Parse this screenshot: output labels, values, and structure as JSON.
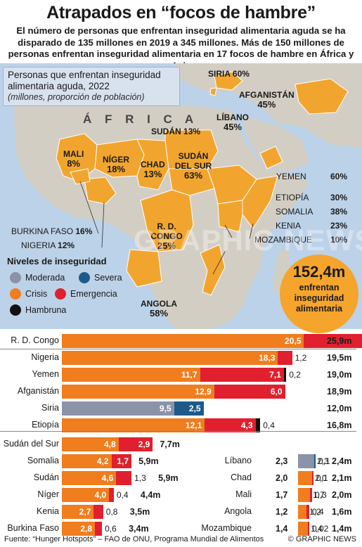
{
  "title": "Atrapados en “focos de hambre”",
  "subtitle": "El número de personas que enfrentan inseguridad alimentaria aguda se ha disparado de 135 millones en 2019 a 345 millones. Más de 150 millones de personas enfrentan inseguridad alimentaria en 17 focos de hambre en África y Asia",
  "infobox": {
    "line1": "Personas que enfrentan inseguridad alimentaria aguda, 2022",
    "line2": "(millones, proporción de población)"
  },
  "map": {
    "continent_label": "Á F R I C A",
    "labels": [
      {
        "name": "SIRIA",
        "pct": "60%"
      },
      {
        "name": "AFGANISTÁN",
        "pct": "45%"
      },
      {
        "name": "LÍBANO",
        "pct": "45%"
      },
      {
        "name": "SUDÁN",
        "pct": "13%"
      },
      {
        "name": "MALI",
        "pct": "8%"
      },
      {
        "name": "NÍGER",
        "pct": "18%"
      },
      {
        "name": "CHAD",
        "pct": "13%"
      },
      {
        "name": "SUDÁN DEL SUR",
        "pct": "63%"
      },
      {
        "name": "R. D. CONGO",
        "pct": "25%"
      },
      {
        "name": "ANGOLA",
        "pct": "58%"
      }
    ],
    "side_labels": [
      {
        "name": "YEMEN",
        "pct": "60%"
      },
      {
        "name": "ETIOPÍA",
        "pct": "30%"
      },
      {
        "name": "SOMALIA",
        "pct": "38%"
      },
      {
        "name": "KENIA",
        "pct": "23%"
      },
      {
        "name": "MOZAMBIQUE",
        "pct": "10%"
      },
      {
        "name": "BURKINA FASO",
        "pct": "16%"
      },
      {
        "name": "NIGERIA",
        "pct": "12%"
      }
    ]
  },
  "legend": {
    "title": "Niveles de inseguridad",
    "items": [
      {
        "label": "Moderada",
        "color": "#8a93a8"
      },
      {
        "label": "Severa",
        "color": "#1c5a8a"
      },
      {
        "label": "Crisis",
        "color": "#f07d1e"
      },
      {
        "label": "Emergencia",
        "color": "#e0202e"
      },
      {
        "label": "Hambruna",
        "color": "#111111"
      }
    ]
  },
  "total": {
    "value": "152,4m",
    "text": "enfrentan inseguridad alimentaria"
  },
  "watermark": "GRAPHIC NEWS",
  "chart_data": {
    "type": "bar",
    "stacked": true,
    "unit": "millones",
    "series": [
      {
        "name": "Moderada",
        "color": "#8a93a8"
      },
      {
        "name": "Severa",
        "color": "#1c5a8a"
      },
      {
        "name": "Crisis",
        "color": "#f07d1e"
      },
      {
        "name": "Emergencia",
        "color": "#e0202e"
      },
      {
        "name": "Hambruna",
        "color": "#111111"
      }
    ],
    "rows": [
      {
        "label": "R. D. Congo",
        "total": "25,9m",
        "segments": [
          {
            "series": "Crisis",
            "value": 20.5,
            "label": "20,5"
          },
          {
            "series": "Emergencia",
            "value": 5.4,
            "label": "5,4"
          }
        ]
      },
      {
        "label": "Nigeria",
        "total": "19,5m",
        "segments": [
          {
            "series": "Crisis",
            "value": 18.3,
            "label": "18,3"
          },
          {
            "series": "Emergencia",
            "value": 1.2,
            "label": "1,2"
          }
        ]
      },
      {
        "label": "Yemen",
        "total": "19,0m",
        "segments": [
          {
            "series": "Crisis",
            "value": 11.7,
            "label": "11,7"
          },
          {
            "series": "Emergencia",
            "value": 7.1,
            "label": "7,1"
          },
          {
            "series": "Hambruna",
            "value": 0.2,
            "label": "0,2"
          }
        ]
      },
      {
        "label": "Afganistán",
        "total": "18,9m",
        "segments": [
          {
            "series": "Crisis",
            "value": 12.9,
            "label": "12,9"
          },
          {
            "series": "Emergencia",
            "value": 6.0,
            "label": "6,0"
          }
        ]
      },
      {
        "label": "Siria",
        "total": "12,0m",
        "segments": [
          {
            "series": "Moderada",
            "value": 9.5,
            "label": "9,5"
          },
          {
            "series": "Severa",
            "value": 2.5,
            "label": "2,5"
          }
        ]
      },
      {
        "label": "Etiopía",
        "total": "16,8m",
        "segments": [
          {
            "series": "Crisis",
            "value": 12.1,
            "label": "12,1"
          },
          {
            "series": "Emergencia",
            "value": 4.3,
            "label": "4,3"
          },
          {
            "series": "Hambruna",
            "value": 0.4,
            "label": "0,4"
          }
        ]
      },
      {
        "label": "Sudán del Sur",
        "total": "7,7m",
        "segments": [
          {
            "series": "Crisis",
            "value": 4.8,
            "label": "4,8"
          },
          {
            "series": "Emergencia",
            "value": 2.9,
            "label": "2,9"
          }
        ]
      },
      {
        "label": "Somalia",
        "total": "5,9m",
        "segments": [
          {
            "series": "Crisis",
            "value": 4.2,
            "label": "4,2"
          },
          {
            "series": "Emergencia",
            "value": 1.7,
            "label": "1,7"
          }
        ]
      },
      {
        "label": "Sudán",
        "total": "5,9m",
        "segments": [
          {
            "series": "Crisis",
            "value": 4.6,
            "label": "4,6"
          },
          {
            "series": "Emergencia",
            "value": 1.3,
            "label": "1,3"
          }
        ]
      },
      {
        "label": "Níger",
        "total": "4,4m",
        "segments": [
          {
            "series": "Crisis",
            "value": 4.0,
            "label": "4,0"
          },
          {
            "series": "Emergencia",
            "value": 0.4,
            "label": "0,4"
          }
        ]
      },
      {
        "label": "Kenia",
        "total": "3,5m",
        "segments": [
          {
            "series": "Crisis",
            "value": 2.7,
            "label": "2,7"
          },
          {
            "series": "Emergencia",
            "value": 0.8,
            "label": "0,8"
          }
        ]
      },
      {
        "label": "Burkina Faso",
        "total": "3,4m",
        "segments": [
          {
            "series": "Crisis",
            "value": 2.8,
            "label": "2,8"
          },
          {
            "series": "Emergencia",
            "value": 0.6,
            "label": "0,6"
          }
        ]
      },
      {
        "label": "Líbano",
        "total": "2,4m",
        "segments": [
          {
            "series": "Moderada",
            "value": 2.3,
            "label": "2,3"
          },
          {
            "series": "Severa",
            "value": 0.1,
            "label": "0,1"
          }
        ]
      },
      {
        "label": "Chad",
        "total": "2,1m",
        "segments": [
          {
            "series": "Crisis",
            "value": 2.0,
            "label": "2,0"
          },
          {
            "series": "Emergencia",
            "value": 0.1,
            "label": "0,1"
          }
        ]
      },
      {
        "label": "Mali",
        "total": "2,0m",
        "segments": [
          {
            "series": "Crisis",
            "value": 1.7,
            "label": "1,7"
          },
          {
            "series": "Emergencia",
            "value": 0.3,
            "label": "0,3"
          }
        ]
      },
      {
        "label": "Angola",
        "total": "1,6m",
        "segments": [
          {
            "series": "Crisis",
            "value": 1.2,
            "label": "1,2"
          },
          {
            "series": "Emergencia",
            "value": 0.4,
            "label": "0,4"
          }
        ]
      },
      {
        "label": "Mozambique",
        "total": "1,4m",
        "segments": [
          {
            "series": "Crisis",
            "value": 1.4,
            "label": "1,4"
          },
          {
            "series": "Emergencia",
            "value": 0.02,
            "label": "0,02"
          }
        ]
      }
    ]
  },
  "footer": {
    "source": "Fuente: “Hunger Hotspots” – FAO de ONU, Programa Mundial de Alimentos",
    "credit": "© GRAPHIC NEWS"
  }
}
